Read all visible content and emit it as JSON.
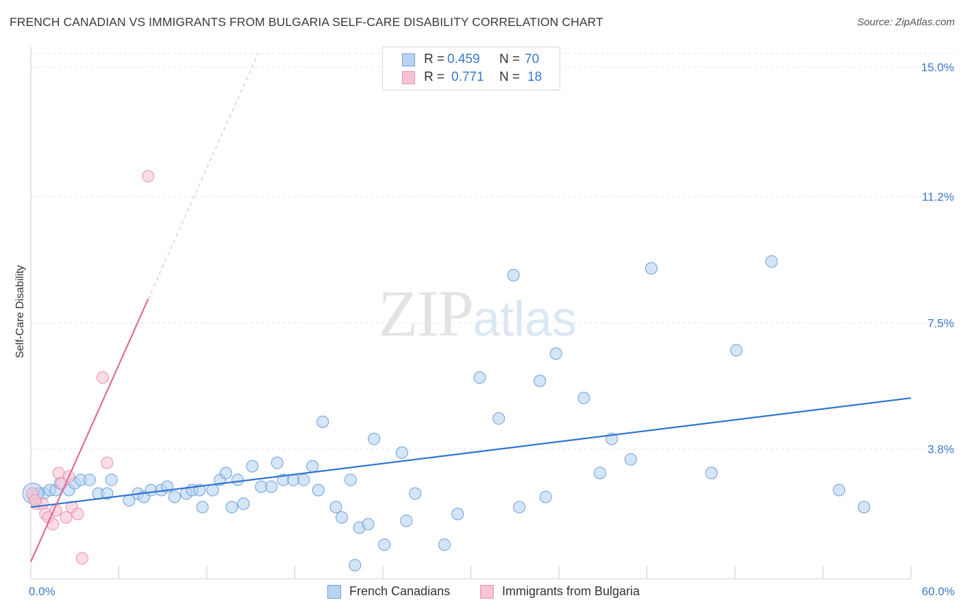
{
  "title": "FRENCH CANADIAN VS IMMIGRANTS FROM BULGARIA SELF-CARE DISABILITY CORRELATION CHART",
  "source": "Source: ZipAtlas.com",
  "watermark": {
    "zip": "ZIP",
    "atlas": "atlas"
  },
  "legend_top": {
    "rows": [
      {
        "r_label": "R =",
        "r_value": "0.459",
        "n_label": "N =",
        "n_value": "70"
      },
      {
        "r_label": "R =",
        "r_value": "0.771",
        "n_label": "N =",
        "n_value": "18"
      }
    ]
  },
  "legend_bottom": {
    "items": [
      {
        "label": "French Canadians"
      },
      {
        "label": "Immigrants from Bulgaria"
      }
    ]
  },
  "colors": {
    "blue_fill": "#b8d4f2",
    "blue_stroke": "#6a9fd8",
    "blue_line": "#2f74d0",
    "pink_fill": "#f8c4d4",
    "pink_stroke": "#e890ac",
    "pink_line": "#e26a94",
    "grid": "#e2e2e2",
    "tick_text": "#3a78c9"
  },
  "chart_data": {
    "type": "scatter",
    "title": "FRENCH CANADIAN VS IMMIGRANTS FROM BULGARIA SELF-CARE DISABILITY CORRELATION CHART",
    "xlabel": "",
    "ylabel": "Self-Care Disability",
    "xlim": [
      0,
      60
    ],
    "ylim": [
      0,
      15.4
    ],
    "x_tick_labels": [
      "0.0%",
      "60.0%"
    ],
    "y_ticks": [
      3.8,
      7.5,
      11.2,
      15.0
    ],
    "y_tick_labels": [
      "3.8%",
      "7.5%",
      "11.2%",
      "15.0%"
    ],
    "grid": "horizontal dashed",
    "legend_position": "top-center",
    "series": [
      {
        "name": "French Canadians",
        "r": 0.459,
        "n": 70,
        "trend": {
          "x": [
            0,
            60
          ],
          "y": [
            2.1,
            5.3
          ]
        },
        "points": [
          [
            0.2,
            2.4
          ],
          [
            0.5,
            2.5
          ],
          [
            0.9,
            2.5
          ],
          [
            1.3,
            2.6
          ],
          [
            1.7,
            2.6
          ],
          [
            2.0,
            2.8
          ],
          [
            2.6,
            2.6
          ],
          [
            3.0,
            2.8
          ],
          [
            3.4,
            2.9
          ],
          [
            4.0,
            2.9
          ],
          [
            4.6,
            2.5
          ],
          [
            5.2,
            2.5
          ],
          [
            5.5,
            2.9
          ],
          [
            6.7,
            2.3
          ],
          [
            7.3,
            2.5
          ],
          [
            7.7,
            2.4
          ],
          [
            8.2,
            2.6
          ],
          [
            8.9,
            2.6
          ],
          [
            9.3,
            2.7
          ],
          [
            9.8,
            2.4
          ],
          [
            10.6,
            2.5
          ],
          [
            11.0,
            2.6
          ],
          [
            11.5,
            2.6
          ],
          [
            11.7,
            2.1
          ],
          [
            12.4,
            2.6
          ],
          [
            12.9,
            2.9
          ],
          [
            13.3,
            3.1
          ],
          [
            13.7,
            2.1
          ],
          [
            14.1,
            2.9
          ],
          [
            14.5,
            2.2
          ],
          [
            15.1,
            3.3
          ],
          [
            15.7,
            2.7
          ],
          [
            16.4,
            2.7
          ],
          [
            16.8,
            3.4
          ],
          [
            17.2,
            2.9
          ],
          [
            17.9,
            2.9
          ],
          [
            18.6,
            2.9
          ],
          [
            19.2,
            3.3
          ],
          [
            19.6,
            2.6
          ],
          [
            19.9,
            4.6
          ],
          [
            20.8,
            2.1
          ],
          [
            21.2,
            1.8
          ],
          [
            21.8,
            2.9
          ],
          [
            22.1,
            0.4
          ],
          [
            22.4,
            1.5
          ],
          [
            23.0,
            1.6
          ],
          [
            23.4,
            4.1
          ],
          [
            24.1,
            1.0
          ],
          [
            25.3,
            3.7
          ],
          [
            25.6,
            1.7
          ],
          [
            26.2,
            2.5
          ],
          [
            28.2,
            1.0
          ],
          [
            29.1,
            1.9
          ],
          [
            30.6,
            5.9
          ],
          [
            31.9,
            4.7
          ],
          [
            32.9,
            8.9
          ],
          [
            33.3,
            2.1
          ],
          [
            34.7,
            5.8
          ],
          [
            35.1,
            2.4
          ],
          [
            35.8,
            6.6
          ],
          [
            37.7,
            5.3
          ],
          [
            38.8,
            3.1
          ],
          [
            39.6,
            4.1
          ],
          [
            40.9,
            3.5
          ],
          [
            42.3,
            9.1
          ],
          [
            46.4,
            3.1
          ],
          [
            48.1,
            6.7
          ],
          [
            50.5,
            9.3
          ],
          [
            55.1,
            2.6
          ],
          [
            56.8,
            2.1
          ]
        ]
      },
      {
        "name": "Immigrants from Bulgaria",
        "r": 0.771,
        "n": 18,
        "trend": {
          "x": [
            0,
            8.0
          ],
          "y": [
            0.5,
            8.2
          ],
          "dashed_to": {
            "x": 15.5,
            "y": 15.4
          }
        },
        "points": [
          [
            0.1,
            2.5
          ],
          [
            0.4,
            2.2
          ],
          [
            0.8,
            2.2
          ],
          [
            1.0,
            1.9
          ],
          [
            1.2,
            1.8
          ],
          [
            1.5,
            1.6
          ],
          [
            1.7,
            2.0
          ],
          [
            1.9,
            3.1
          ],
          [
            2.1,
            2.8
          ],
          [
            2.4,
            1.8
          ],
          [
            2.6,
            3.0
          ],
          [
            2.8,
            2.1
          ],
          [
            3.2,
            1.9
          ],
          [
            3.5,
            0.6
          ],
          [
            4.9,
            5.9
          ],
          [
            5.2,
            3.4
          ],
          [
            8.0,
            11.8
          ],
          [
            0.3,
            2.3
          ]
        ]
      }
    ]
  }
}
